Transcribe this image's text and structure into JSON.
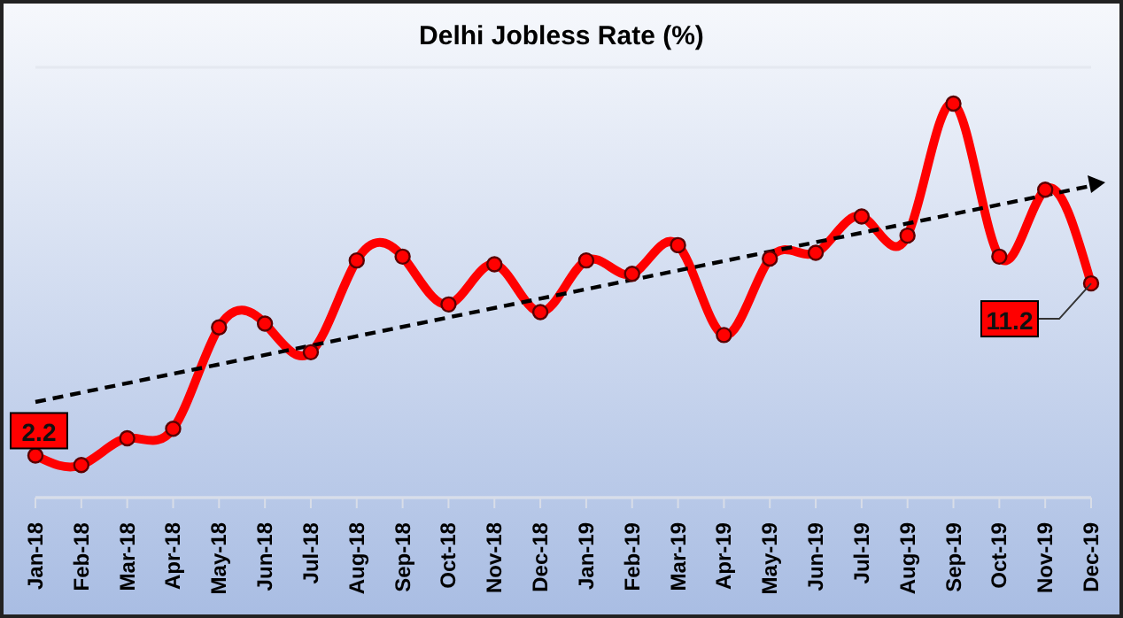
{
  "chart_data": {
    "type": "line",
    "title": "Delhi Jobless Rate (%)",
    "categories": [
      "Jan-18",
      "Feb-18",
      "Mar-18",
      "Apr-18",
      "May-18",
      "Jun-18",
      "Jul-18",
      "Aug-18",
      "Sep-18",
      "Oct-18",
      "Nov-18",
      "Dec-18",
      "Jan-19",
      "Feb-19",
      "Mar-19",
      "Apr-19",
      "May-19",
      "Jun-19",
      "Jul-19",
      "Aug-19",
      "Sep-19",
      "Oct-19",
      "Nov-19",
      "Dec-19"
    ],
    "series": [
      {
        "color": "#ff0000",
        "values": [
          2.2,
          1.7,
          3.1,
          3.6,
          8.9,
          9.1,
          7.6,
          12.4,
          12.6,
          10.1,
          12.2,
          9.7,
          12.4,
          11.7,
          13.2,
          8.5,
          12.5,
          12.8,
          14.7,
          13.7,
          20.6,
          12.6,
          16.1,
          11.2
        ],
        "value_labels": [
          "2.2",
          null,
          null,
          null,
          null,
          null,
          null,
          null,
          null,
          null,
          null,
          null,
          null,
          null,
          null,
          null,
          null,
          null,
          null,
          null,
          null,
          null,
          null,
          "11.2"
        ],
        "marker": "circle",
        "line_style": "solid"
      },
      {
        "type": "line",
        "color": "#000000",
        "x": [
          "Jan-18",
          "Dec-19"
        ],
        "values": [
          5.0,
          16.3
        ],
        "line_style": "dashed"
      }
    ],
    "ylim": [
      0,
      22.5
    ],
    "grid": "y",
    "tick_labels": "x",
    "legend": false
  }
}
